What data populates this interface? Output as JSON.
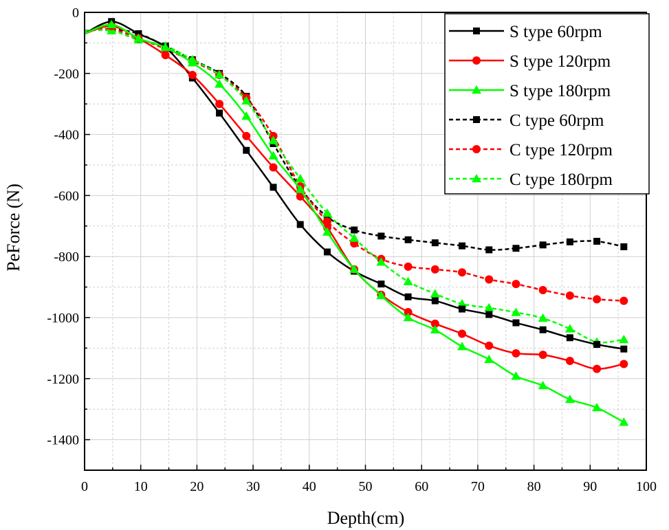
{
  "chart_data": {
    "type": "line",
    "title": "",
    "xlabel": "Depth(cm)",
    "ylabel": "PeForce (N)",
    "xlim": [
      0,
      100
    ],
    "ylim": [
      -1500,
      0
    ],
    "xticks": [
      0,
      10,
      20,
      30,
      40,
      50,
      60,
      70,
      80,
      90,
      100
    ],
    "yticks": [
      0,
      -200,
      -400,
      -600,
      -800,
      -1000,
      -1200,
      -1400
    ],
    "grid": true,
    "legend": "top-right",
    "series": [
      {
        "name": "S type 60rpm",
        "color": "#000000",
        "line": "solid",
        "marker": "square",
        "points": [
          [
            0,
            -70
          ],
          [
            4.8,
            -30
          ],
          [
            9.6,
            -70
          ],
          [
            14.4,
            -115
          ],
          [
            19.2,
            -215
          ],
          [
            24,
            -330
          ],
          [
            28.8,
            -452
          ],
          [
            33.6,
            -573
          ],
          [
            38.4,
            -695
          ],
          [
            43.2,
            -785
          ],
          [
            48,
            -848
          ],
          [
            52.8,
            -890
          ],
          [
            57.6,
            -932
          ],
          [
            62.4,
            -945
          ],
          [
            67.2,
            -972
          ],
          [
            72,
            -990
          ],
          [
            76.8,
            -1017
          ],
          [
            81.6,
            -1040
          ],
          [
            86.4,
            -1066
          ],
          [
            91.2,
            -1088
          ],
          [
            96,
            -1103
          ]
        ]
      },
      {
        "name": "S type 120rpm",
        "color": "#ff0000",
        "line": "solid",
        "marker": "circle",
        "points": [
          [
            0,
            -70
          ],
          [
            4.8,
            -45
          ],
          [
            9.6,
            -85
          ],
          [
            14.4,
            -140
          ],
          [
            19.2,
            -205
          ],
          [
            24,
            -300
          ],
          [
            28.8,
            -405
          ],
          [
            33.6,
            -508
          ],
          [
            38.4,
            -603
          ],
          [
            43.2,
            -705
          ],
          [
            48,
            -842
          ],
          [
            52.8,
            -925
          ],
          [
            57.6,
            -982
          ],
          [
            62.4,
            -1020
          ],
          [
            67.2,
            -1053
          ],
          [
            72,
            -1092
          ],
          [
            76.8,
            -1117
          ],
          [
            81.6,
            -1122
          ],
          [
            86.4,
            -1142
          ],
          [
            91.2,
            -1168
          ],
          [
            96,
            -1152
          ]
        ]
      },
      {
        "name": "S type 180rpm",
        "color": "#00ff00",
        "line": "solid",
        "marker": "triangle",
        "points": [
          [
            0,
            -70
          ],
          [
            4.8,
            -40
          ],
          [
            9.6,
            -85
          ],
          [
            14.4,
            -115
          ],
          [
            19.2,
            -165
          ],
          [
            24,
            -235
          ],
          [
            28.8,
            -340
          ],
          [
            33.6,
            -470
          ],
          [
            38.4,
            -580
          ],
          [
            43.2,
            -720
          ],
          [
            48,
            -842
          ],
          [
            52.8,
            -928
          ],
          [
            57.6,
            -1000
          ],
          [
            62.4,
            -1040
          ],
          [
            67.2,
            -1095
          ],
          [
            72,
            -1137
          ],
          [
            76.8,
            -1192
          ],
          [
            81.6,
            -1223
          ],
          [
            86.4,
            -1268
          ],
          [
            91.2,
            -1295
          ],
          [
            96,
            -1343
          ]
        ]
      },
      {
        "name": "C type 60rpm",
        "color": "#000000",
        "line": "dashed",
        "marker": "square",
        "points": [
          [
            0,
            -60
          ],
          [
            4.8,
            -55
          ],
          [
            9.6,
            -70
          ],
          [
            14.4,
            -110
          ],
          [
            19.2,
            -155
          ],
          [
            24,
            -200
          ],
          [
            28.8,
            -275
          ],
          [
            33.6,
            -430
          ],
          [
            38.4,
            -575
          ],
          [
            43.2,
            -670
          ],
          [
            48,
            -713
          ],
          [
            52.8,
            -733
          ],
          [
            57.6,
            -745
          ],
          [
            62.4,
            -755
          ],
          [
            67.2,
            -765
          ],
          [
            72,
            -778
          ],
          [
            76.8,
            -773
          ],
          [
            81.6,
            -762
          ],
          [
            86.4,
            -752
          ],
          [
            91.2,
            -750
          ],
          [
            96,
            -768
          ]
        ]
      },
      {
        "name": "C type 120rpm",
        "color": "#ff0000",
        "line": "dashed",
        "marker": "circle",
        "points": [
          [
            0,
            -60
          ],
          [
            4.8,
            -55
          ],
          [
            9.6,
            -85
          ],
          [
            14.4,
            -120
          ],
          [
            19.2,
            -160
          ],
          [
            24,
            -205
          ],
          [
            28.8,
            -280
          ],
          [
            33.6,
            -405
          ],
          [
            38.4,
            -570
          ],
          [
            43.2,
            -685
          ],
          [
            48,
            -757
          ],
          [
            52.8,
            -808
          ],
          [
            57.6,
            -833
          ],
          [
            62.4,
            -842
          ],
          [
            67.2,
            -852
          ],
          [
            72,
            -875
          ],
          [
            76.8,
            -890
          ],
          [
            81.6,
            -910
          ],
          [
            86.4,
            -928
          ],
          [
            91.2,
            -940
          ],
          [
            96,
            -945
          ]
        ]
      },
      {
        "name": "C type 180rpm",
        "color": "#00ff00",
        "line": "dashed",
        "marker": "triangle",
        "points": [
          [
            0,
            -60
          ],
          [
            4.8,
            -60
          ],
          [
            9.6,
            -90
          ],
          [
            14.4,
            -110
          ],
          [
            19.2,
            -155
          ],
          [
            24,
            -205
          ],
          [
            28.8,
            -290
          ],
          [
            33.6,
            -420
          ],
          [
            38.4,
            -545
          ],
          [
            43.2,
            -658
          ],
          [
            48,
            -740
          ],
          [
            52.8,
            -818
          ],
          [
            57.6,
            -882
          ],
          [
            62.4,
            -922
          ],
          [
            67.2,
            -955
          ],
          [
            72,
            -968
          ],
          [
            76.8,
            -983
          ],
          [
            81.6,
            -1002
          ],
          [
            86.4,
            -1037
          ],
          [
            91.2,
            -1080
          ],
          [
            96,
            -1072
          ]
        ]
      }
    ]
  }
}
